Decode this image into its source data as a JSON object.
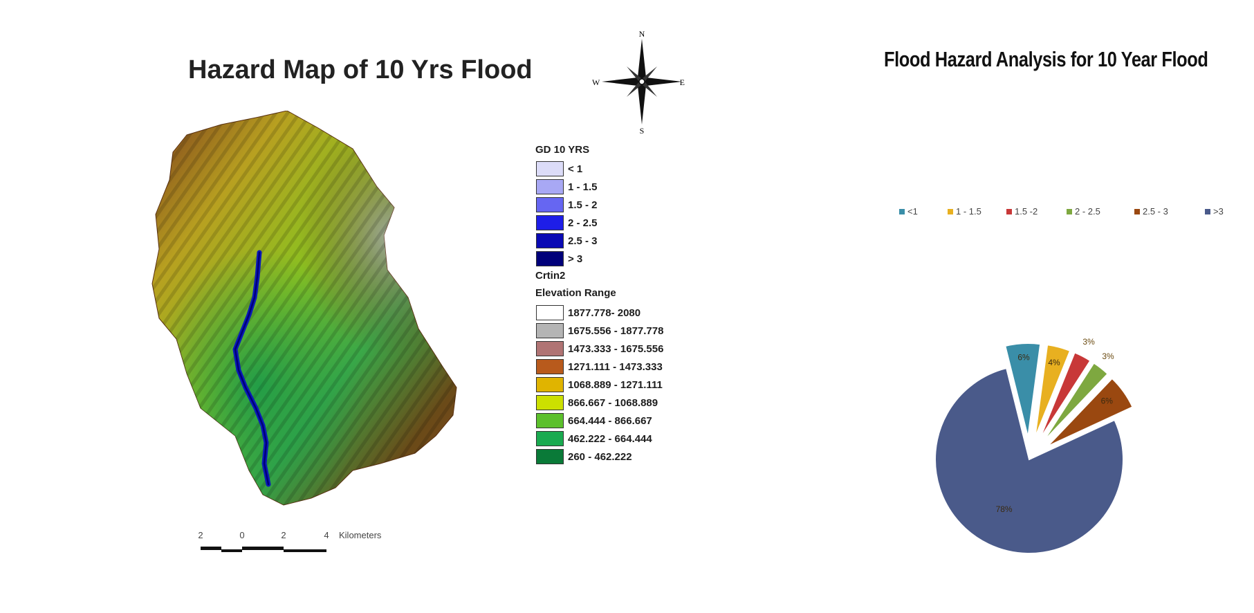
{
  "map": {
    "title": "Hazard Map of 10 Yrs Flood",
    "compass": {
      "n": "N",
      "s": "S",
      "e": "E",
      "w": "W"
    },
    "legend": {
      "gd_title": "GD 10 YRS",
      "gd_items": [
        {
          "label": "< 1",
          "color": "#dcdcf8"
        },
        {
          "label": "1 - 1.5",
          "color": "#a8a8f4"
        },
        {
          "label": "1.5 - 2",
          "color": "#6666f2"
        },
        {
          "label": "2 - 2.5",
          "color": "#1e1ee8"
        },
        {
          "label": "2.5 - 3",
          "color": "#0a0ab4"
        },
        {
          "label": "> 3",
          "color": "#00007a"
        }
      ],
      "crtin_label": "Crtin2",
      "elev_title": "Elevation Range",
      "elev_items": [
        {
          "label": "1877.778- 2080",
          "color": "#ffffff"
        },
        {
          "label": "1675.556 - 1877.778",
          "color": "#b4b4b4"
        },
        {
          "label": "1473.333  - 1675.556",
          "color": "#b07474"
        },
        {
          "label": "1271.111  -  1473.333",
          "color": "#b85a1c"
        },
        {
          "label": "1068.889 - 1271.111",
          "color": "#e0b400"
        },
        {
          "label": "866.667 - 1068.889",
          "color": "#cce000"
        },
        {
          "label": "664.444 - 866.667",
          "color": "#5cc02c"
        },
        {
          "label": "462.222 - 664.444",
          "color": "#1aaa50"
        },
        {
          "label": "260 - 462.222",
          "color": "#0a7a38"
        }
      ]
    },
    "scalebar": {
      "ticks": [
        "2",
        "0",
        "2",
        "4"
      ],
      "unit": "Kilometers"
    }
  },
  "chart_data": {
    "type": "pie",
    "title": "Flood Hazard Analysis for 10 Year Flood",
    "legend_position": "top",
    "slices": [
      {
        "label": "<1",
        "value": 6,
        "display": "6%",
        "color": "#3a8ea8"
      },
      {
        "label": "1 - 1.5",
        "value": 4,
        "display": "4%",
        "color": "#e8b020"
      },
      {
        "label": "1.5 -2",
        "value": 3,
        "display": "3%",
        "color": "#c83838"
      },
      {
        "label": "2 - 2.5",
        "value": 3,
        "display": "3%",
        "color": "#7ea840"
      },
      {
        "label": "2.5 - 3",
        "value": 6,
        "display": "6%",
        "color": "#9a4810"
      },
      {
        "label": ">3",
        "value": 78,
        "display": "78%",
        "color": "#4a5a8a"
      }
    ]
  }
}
